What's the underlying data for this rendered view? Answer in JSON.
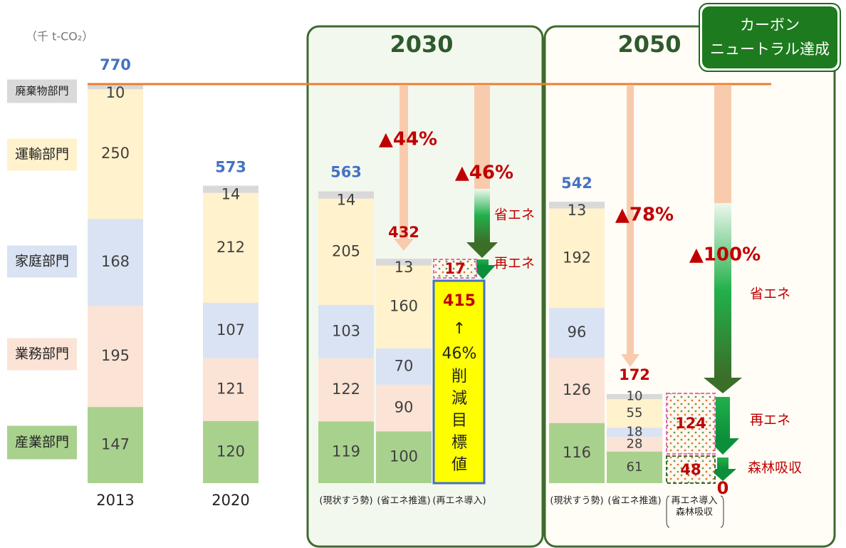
{
  "unit": "（千 t-CO₂）",
  "sectors": [
    {
      "name": "廃棄物部門",
      "color": "#d9d9d9"
    },
    {
      "name": "運輸部門",
      "color": "#fff2cc"
    },
    {
      "name": "家庭部門",
      "color": "#dae3f3"
    },
    {
      "name": "業務部門",
      "color": "#fbe3d6"
    },
    {
      "name": "産業部門",
      "color": "#a9d18e"
    }
  ],
  "panels": [
    {
      "title": "2030"
    },
    {
      "title": "2050"
    }
  ],
  "badge": [
    "カーボン",
    "ニュートラル達成"
  ],
  "columns": [
    {
      "label": "2013",
      "total": 770,
      "segments": [
        10,
        250,
        168,
        195,
        147
      ]
    },
    {
      "label": "2020",
      "total": 573,
      "segments": [
        14,
        212,
        107,
        121,
        120
      ]
    },
    {
      "label": "(現状すう勢)",
      "total": 563,
      "segments": [
        14,
        205,
        103,
        122,
        119
      ]
    },
    {
      "label": "(省エネ推進)",
      "total": 432,
      "segments": [
        13,
        160,
        70,
        90,
        100
      ]
    },
    {
      "label": "(現状すう勢)",
      "total": 542,
      "segments": [
        13,
        192,
        96,
        126,
        116
      ]
    },
    {
      "label": "(省エネ推進)",
      "total": 172,
      "segments": [
        10,
        55,
        18,
        28,
        61
      ]
    }
  ],
  "target_2030": {
    "value": 415,
    "lines": [
      "↑",
      "46%",
      "削",
      "減",
      "目",
      "標",
      "値"
    ]
  },
  "renewable_2030": 17,
  "label_2030_re": "(再エネ導入)",
  "renewable_2050": 124,
  "forest_2050": 48,
  "zero_2050": 0,
  "label_2050_re": [
    "再エネ導入",
    "森林吸収"
  ],
  "reductions": [
    "▲44%",
    "▲46%",
    "▲78%",
    "▲100%"
  ],
  "measures": [
    "省エネ",
    "再エネ",
    "省エネ",
    "再エネ",
    "森林吸収"
  ]
}
